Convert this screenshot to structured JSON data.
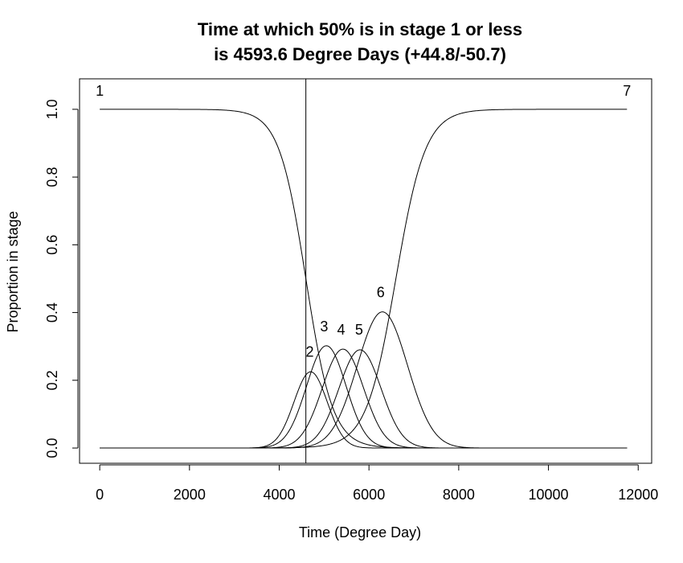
{
  "chart_data": {
    "type": "line",
    "title_line1": "Time at which 50% is in stage 1 or less",
    "title_line2": "is 4593.6 Degree Days (+44.8/-50.7)",
    "xlabel": "Time (Degree Day)",
    "ylabel": "Proportion in stage",
    "xlim": [
      -450,
      12300
    ],
    "ylim": [
      -0.045,
      1.09
    ],
    "xticks": [
      0,
      2000,
      4000,
      6000,
      8000,
      10000,
      12000
    ],
    "yticks": [
      0.0,
      0.2,
      0.4,
      0.6,
      0.8,
      1.0
    ],
    "xtick_labels": [
      "0",
      "2000",
      "4000",
      "6000",
      "8000",
      "10000",
      "12000"
    ],
    "ytick_labels": [
      "0.0",
      "0.2",
      "0.4",
      "0.6",
      "0.8",
      "1.0"
    ],
    "x_range": [
      0,
      11750
    ],
    "vline_x": 4593.6,
    "grid": false,
    "series": [
      {
        "name": "1",
        "kind": "decline",
        "center": 4593.6,
        "scale": 300
      },
      {
        "name": "2",
        "kind": "bump",
        "center": 4700,
        "sigma": 370,
        "peak": 0.225
      },
      {
        "name": "3",
        "kind": "bump",
        "center": 5050,
        "sigma": 440,
        "peak": 0.302
      },
      {
        "name": "4",
        "kind": "bump",
        "center": 5420,
        "sigma": 460,
        "peak": 0.292
      },
      {
        "name": "5",
        "kind": "bump",
        "center": 5800,
        "sigma": 470,
        "peak": 0.29
      },
      {
        "name": "6",
        "kind": "bump",
        "center": 6300,
        "sigma": 560,
        "peak": 0.402
      },
      {
        "name": "7",
        "kind": "rise",
        "center": 6600,
        "scale": 330
      }
    ],
    "stage_labels": [
      {
        "text": "1",
        "x": 0,
        "y": 1.04
      },
      {
        "text": "2",
        "x": 4680,
        "y": 0.27
      },
      {
        "text": "3",
        "x": 5000,
        "y": 0.345
      },
      {
        "text": "4",
        "x": 5380,
        "y": 0.335
      },
      {
        "text": "5",
        "x": 5780,
        "y": 0.335
      },
      {
        "text": "6",
        "x": 6260,
        "y": 0.445
      },
      {
        "text": "7",
        "x": 11750,
        "y": 1.04
      }
    ]
  }
}
